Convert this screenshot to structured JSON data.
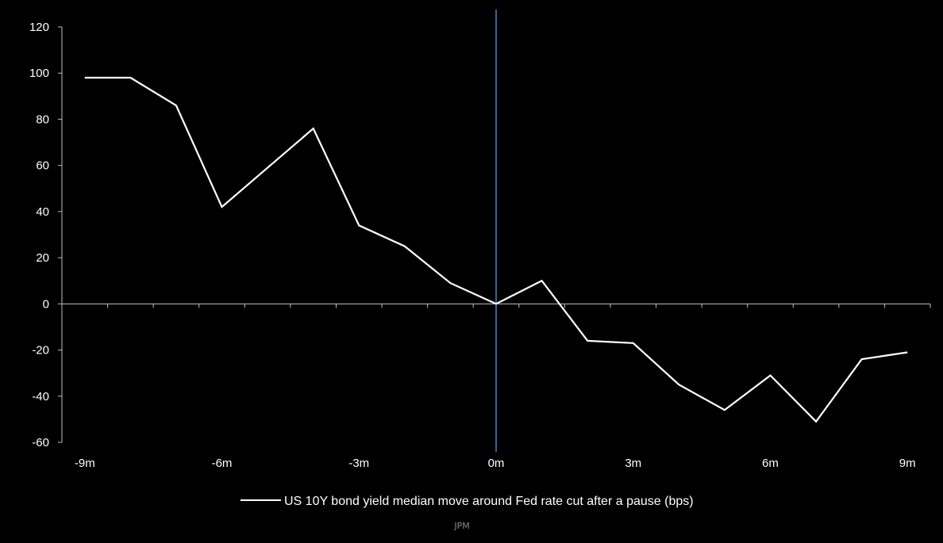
{
  "chart_data": {
    "type": "line",
    "x": [
      -9,
      -8,
      -7,
      -6,
      -5,
      -4,
      -3,
      -2,
      -1,
      0,
      1,
      2,
      3,
      4,
      5,
      6,
      7,
      8,
      9
    ],
    "series": [
      {
        "name": "US 10Y bond yield median move around Fed rate cut after a pause (bps)",
        "values": [
          98,
          98,
          86,
          42,
          59,
          76,
          34,
          25,
          9,
          0,
          10,
          -16,
          -17,
          -35,
          -46,
          -31,
          -51,
          -24,
          -21
        ]
      }
    ],
    "xticks": [
      -9,
      -6,
      -3,
      0,
      3,
      6,
      9
    ],
    "xtick_labels": [
      "-9m",
      "-6m",
      "-3m",
      "0m",
      "3m",
      "6m",
      "9m"
    ],
    "yticks": [
      120,
      100,
      80,
      60,
      40,
      20,
      0,
      -20,
      -40,
      -60
    ],
    "xlim": [
      -9.5,
      9.5
    ],
    "ylim": [
      -60,
      120
    ],
    "vertical_marker_x": 0,
    "legend_position": "bottom",
    "grid": false,
    "colors": {
      "background": "#000000",
      "line": "#ffffff",
      "marker": "#4a7fd4",
      "axis": "#bfbfbf"
    }
  },
  "source": "JPM"
}
